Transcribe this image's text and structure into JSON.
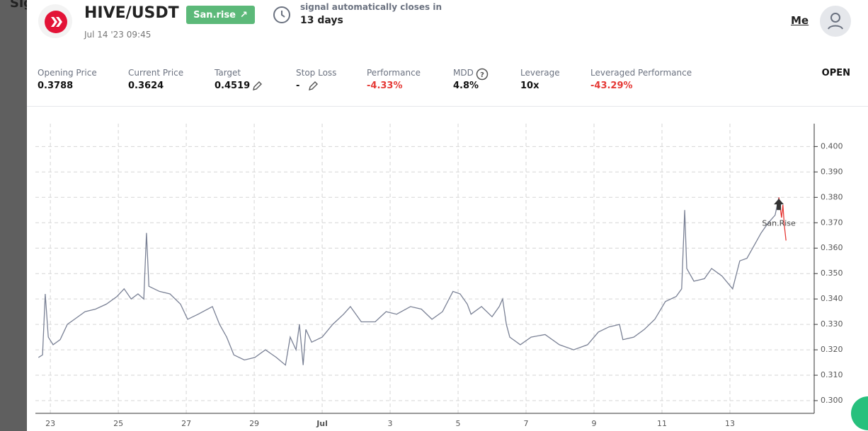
{
  "background_text": "Sig",
  "header": {
    "pair": "HIVE/USDT",
    "date": "Jul 14 '23 09:45",
    "badge": "San.rise",
    "closes_label": "signal automatically closes in",
    "closes_value": "13 days",
    "user": "Me"
  },
  "stats": [
    {
      "label": "Opening Price",
      "value": "0.3788"
    },
    {
      "label": "Current Price",
      "value": "0.3624"
    },
    {
      "label": "Target",
      "value": "0.4519"
    },
    {
      "label": "Stop Loss",
      "value": "-"
    },
    {
      "label": "Performance",
      "value": "-4.33%"
    },
    {
      "label": "MDD",
      "value": "4.8%"
    },
    {
      "label": "Leverage",
      "value": "10x"
    },
    {
      "label": "Leveraged Performance",
      "value": "-43.29%"
    }
  ],
  "status": "OPEN",
  "chart_data": {
    "type": "line",
    "annotation": "San.Rise",
    "grid": true,
    "xlim": [
      -0.44,
      22.48
    ],
    "ylim": [
      0.295,
      0.409
    ],
    "xticks": [
      {
        "value": 0,
        "label": "23"
      },
      {
        "value": 2,
        "label": "25"
      },
      {
        "value": 4,
        "label": "27"
      },
      {
        "value": 6,
        "label": "29"
      },
      {
        "value": 8,
        "label": "Jul"
      },
      {
        "value": 10,
        "label": "3"
      },
      {
        "value": 12,
        "label": "5"
      },
      {
        "value": 14,
        "label": "7"
      },
      {
        "value": 16,
        "label": "9"
      },
      {
        "value": 18,
        "label": "11"
      },
      {
        "value": 20,
        "label": "13"
      }
    ],
    "yticks": [
      {
        "value": 0.3,
        "label": "0.300"
      },
      {
        "value": 0.31,
        "label": "0.310"
      },
      {
        "value": 0.32,
        "label": "0.320"
      },
      {
        "value": 0.33,
        "label": "0.330"
      },
      {
        "value": 0.34,
        "label": "0.340"
      },
      {
        "value": 0.35,
        "label": "0.350"
      },
      {
        "value": 0.36,
        "label": "0.360"
      },
      {
        "value": 0.37,
        "label": "0.370"
      },
      {
        "value": 0.38,
        "label": "0.380"
      },
      {
        "value": 0.39,
        "label": "0.390"
      },
      {
        "value": 0.4,
        "label": "0.400"
      }
    ],
    "series": [
      {
        "color": "#7a8195",
        "x": [
          -0.35,
          -0.23,
          -0.15,
          -0.06,
          0.08,
          0.29,
          0.5,
          0.71,
          1.02,
          1.33,
          1.65,
          1.96,
          2.17,
          2.38,
          2.58,
          2.75,
          2.83,
          2.9,
          3.21,
          3.52,
          3.83,
          4.04,
          4.35,
          4.77,
          4.98,
          5.19,
          5.4,
          5.71,
          6.02,
          6.33,
          6.65,
          6.92,
          7.06,
          7.23,
          7.33,
          7.44,
          7.52,
          7.69,
          8.0,
          8.31,
          8.63,
          8.83,
          9.15,
          9.56,
          9.88,
          10.19,
          10.6,
          10.92,
          11.23,
          11.54,
          11.85,
          12.06,
          12.27,
          12.38,
          12.69,
          13.0,
          13.21,
          13.31,
          13.42,
          13.52,
          13.83,
          14.15,
          14.56,
          14.98,
          15.4,
          15.81,
          16.13,
          16.44,
          16.75,
          16.85,
          17.17,
          17.48,
          17.79,
          18.1,
          18.42,
          18.58,
          18.67,
          18.73,
          18.94,
          19.25,
          19.46,
          19.77,
          20.08,
          20.29,
          20.5,
          20.71,
          20.92,
          21.13,
          21.33,
          21.44
        ],
        "values": [
          0.317,
          0.318,
          0.342,
          0.325,
          0.322,
          0.324,
          0.33,
          0.332,
          0.335,
          0.336,
          0.338,
          0.341,
          0.344,
          0.34,
          0.342,
          0.34,
          0.366,
          0.345,
          0.343,
          0.342,
          0.338,
          0.332,
          0.334,
          0.337,
          0.33,
          0.325,
          0.318,
          0.316,
          0.317,
          0.32,
          0.317,
          0.314,
          0.325,
          0.32,
          0.33,
          0.314,
          0.328,
          0.323,
          0.325,
          0.33,
          0.334,
          0.337,
          0.331,
          0.331,
          0.335,
          0.334,
          0.337,
          0.336,
          0.332,
          0.335,
          0.343,
          0.342,
          0.338,
          0.334,
          0.337,
          0.333,
          0.337,
          0.34,
          0.33,
          0.325,
          0.322,
          0.325,
          0.326,
          0.322,
          0.32,
          0.322,
          0.327,
          0.329,
          0.33,
          0.324,
          0.325,
          0.328,
          0.332,
          0.339,
          0.341,
          0.344,
          0.375,
          0.352,
          0.347,
          0.348,
          0.352,
          0.349,
          0.344,
          0.355,
          0.356,
          0.361,
          0.366,
          0.37,
          0.373,
          0.38
        ]
      },
      {
        "color": "#e53935",
        "x": [
          21.44,
          21.52,
          21.56,
          21.6,
          21.65
        ],
        "values": [
          0.38,
          0.372,
          0.377,
          0.369,
          0.363
        ]
      }
    ]
  }
}
